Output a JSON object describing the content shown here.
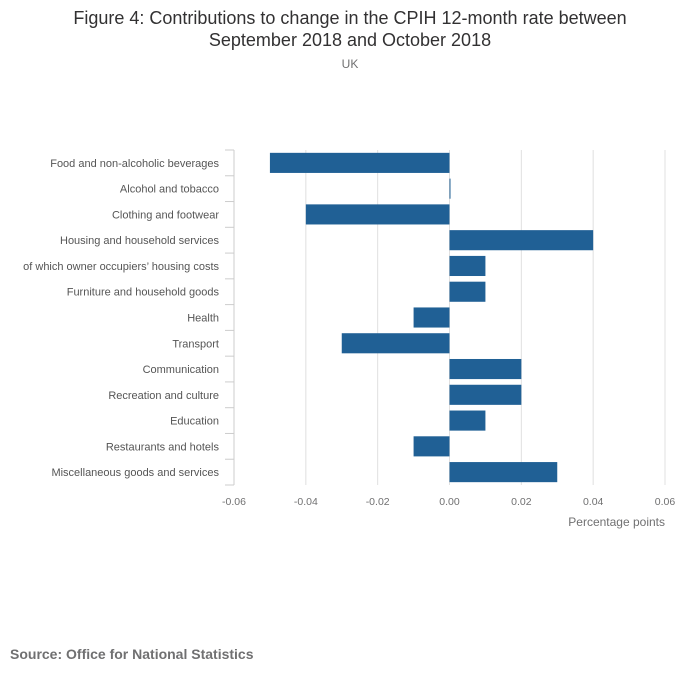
{
  "title_lines": [
    "Figure 4: Contributions to change in the CPIH 12-month rate between",
    "September 2018 and October 2018"
  ],
  "subtitle": "UK",
  "source": "Source: Office for National Statistics",
  "colors": {
    "bar": "#206095",
    "grid": "#e0e0e0",
    "axis_text": "#707071",
    "tick_line": "#cccccc"
  },
  "chart_data": {
    "type": "bar",
    "orientation": "horizontal",
    "categories": [
      "Food and non-alcoholic beverages",
      "Alcohol and tobacco",
      "Clothing and footwear",
      "Housing and household services",
      "of which owner occupiers’ housing costs",
      "Furniture and household goods",
      "Health",
      "Transport",
      "Communication",
      "Recreation and culture",
      "Education",
      "Restaurants and hotels",
      "Miscellaneous goods and services"
    ],
    "values": [
      -0.05,
      0.0,
      -0.04,
      0.04,
      0.01,
      0.01,
      -0.01,
      -0.03,
      0.02,
      0.02,
      0.01,
      -0.01,
      0.03
    ],
    "xlabel": "Percentage points",
    "xlim": [
      -0.06,
      0.06
    ],
    "xticks": [
      "-0.06",
      "-0.04",
      "-0.02",
      "0.00",
      "0.02",
      "0.04",
      "0.06"
    ],
    "grid": true
  }
}
